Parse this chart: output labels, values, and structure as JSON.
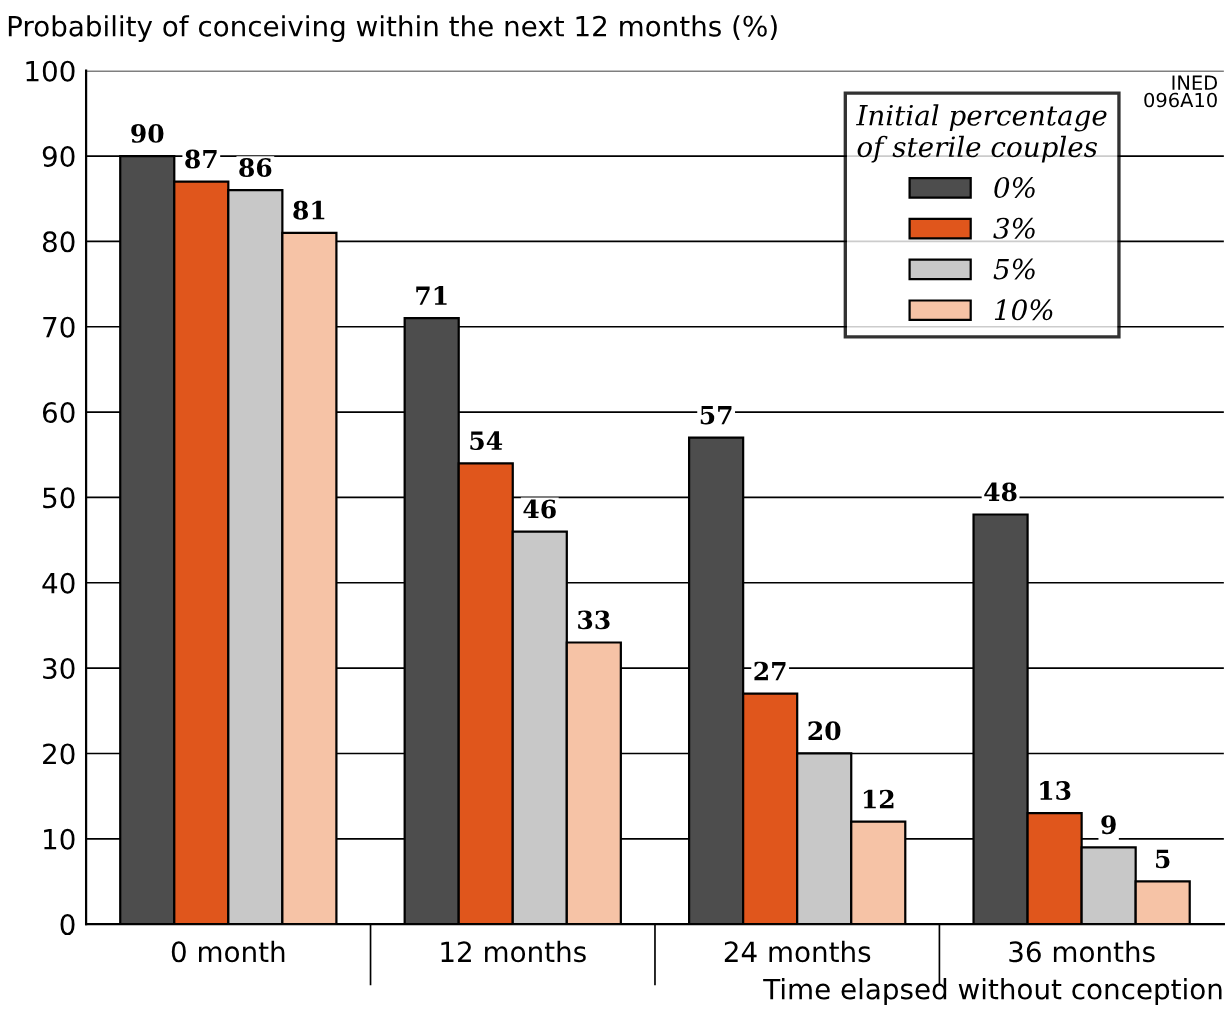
{
  "chart_data": {
    "type": "bar",
    "ylabel": "Probability of conceiving within the next 12 months (%)",
    "xlabel": "Time elapsed without conception",
    "legend_title": "Initial percentage\nof sterile couples",
    "annotations": [
      "INED\n096A10"
    ],
    "categories": [
      "0 month",
      "12 months",
      "24 months",
      "36 months"
    ],
    "series": [
      {
        "name": "0%",
        "color": "#4d4d4d",
        "values": [
          90,
          71,
          57,
          48
        ]
      },
      {
        "name": "3%",
        "color": "#e0561c",
        "values": [
          87,
          54,
          27,
          13
        ]
      },
      {
        "name": "5%",
        "color": "#c8c8c8",
        "values": [
          86,
          46,
          20,
          9
        ]
      },
      {
        "name": "10%",
        "color": "#f6c3a6",
        "values": [
          81,
          33,
          12,
          5
        ]
      }
    ],
    "ylim": [
      0,
      100
    ],
    "yticks": [
      0,
      10,
      20,
      30,
      40,
      50,
      60,
      70,
      80,
      90,
      100
    ],
    "grid": "y",
    "legend": "top right",
    "data_labels": true
  }
}
